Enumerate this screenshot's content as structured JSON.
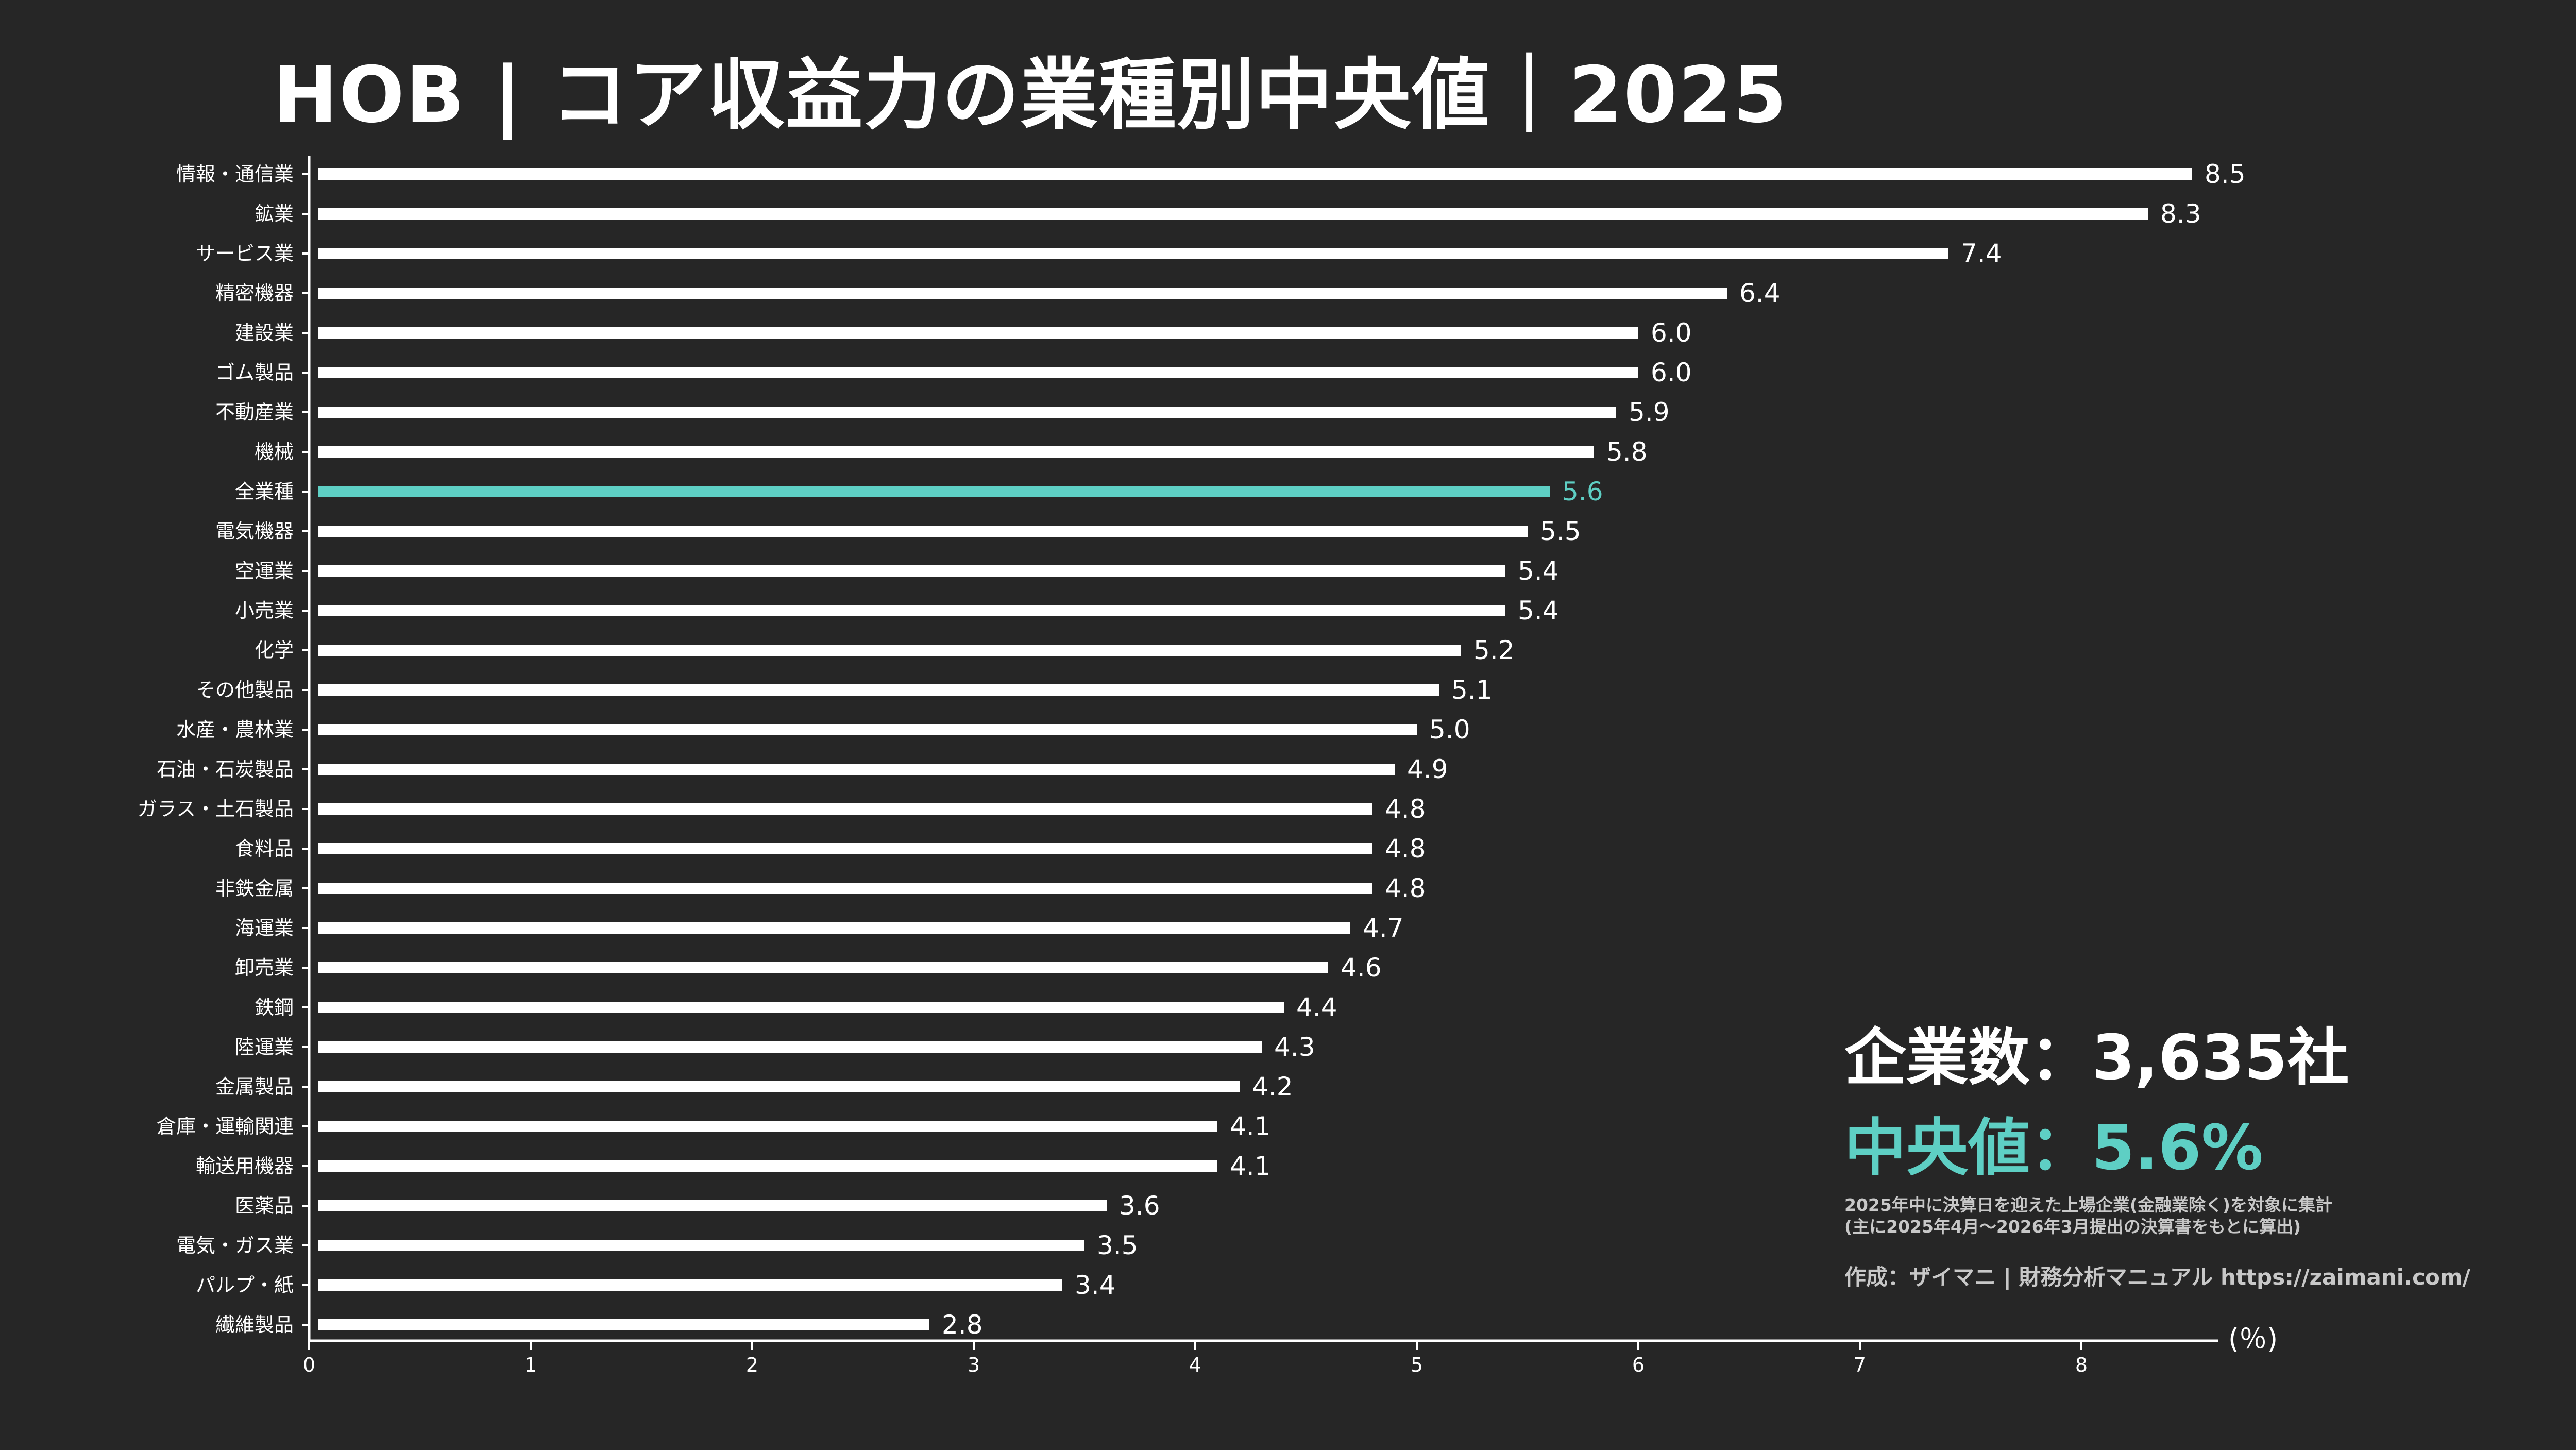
{
  "header": {
    "title": "HOB | コア収益力の業種別中央値｜2025"
  },
  "colors": {
    "background": "#262626",
    "bar": "#ffffff",
    "highlight": "#5ecfc4",
    "text": "#ffffff",
    "note": "#c8c8c8"
  },
  "info": {
    "company_count": "企業数：3,635社",
    "median": "中央値：5.6%",
    "note_line1": "2025年中に決算日を迎えた上場企業(金融業除く)を対象に集計",
    "note_line2": "(主に2025年4月～2026年3月提出の決算書をもとに算出)",
    "credit": "作成：ザイマニ | 財務分析マニュアル https://zaimani.com/"
  },
  "chart_data": {
    "type": "bar",
    "orientation": "horizontal",
    "title": "HOB | コア収益力の業種別中央値｜2025",
    "unit_label": "(％)",
    "xlim": [
      0,
      8.5
    ],
    "x_ticks": [
      0,
      1,
      2,
      3,
      4,
      5,
      6,
      7,
      8
    ],
    "highlight_category": "全業種",
    "categories": [
      "情報・通信業",
      "鉱業",
      "サービス業",
      "精密機器",
      "建設業",
      "ゴム製品",
      "不動産業",
      "機械",
      "全業種",
      "電気機器",
      "空運業",
      "小売業",
      "化学",
      "その他製品",
      "水産・農林業",
      "石油・石炭製品",
      "ガラス・土石製品",
      "食料品",
      "非鉄金属",
      "海運業",
      "卸売業",
      "鉄鋼",
      "陸運業",
      "金属製品",
      "倉庫・運輸関連",
      "輸送用機器",
      "医薬品",
      "電気・ガス業",
      "パルプ・紙",
      "繊維製品"
    ],
    "values": [
      8.5,
      8.3,
      7.4,
      6.4,
      6.0,
      6.0,
      5.9,
      5.8,
      5.6,
      5.5,
      5.4,
      5.4,
      5.2,
      5.1,
      5.0,
      4.9,
      4.8,
      4.8,
      4.8,
      4.7,
      4.6,
      4.4,
      4.3,
      4.2,
      4.1,
      4.1,
      3.6,
      3.5,
      3.4,
      2.8
    ],
    "value_labels": [
      "8.5",
      "8.3",
      "7.4",
      "6.4",
      "6.0",
      "6.0",
      "5.9",
      "5.8",
      "5.6",
      "5.5",
      "5.4",
      "5.4",
      "5.2",
      "5.1",
      "5.0",
      "4.9",
      "4.8",
      "4.8",
      "4.8",
      "4.7",
      "4.6",
      "4.4",
      "4.3",
      "4.2",
      "4.1",
      "4.1",
      "3.6",
      "3.5",
      "3.4",
      "2.8"
    ]
  }
}
